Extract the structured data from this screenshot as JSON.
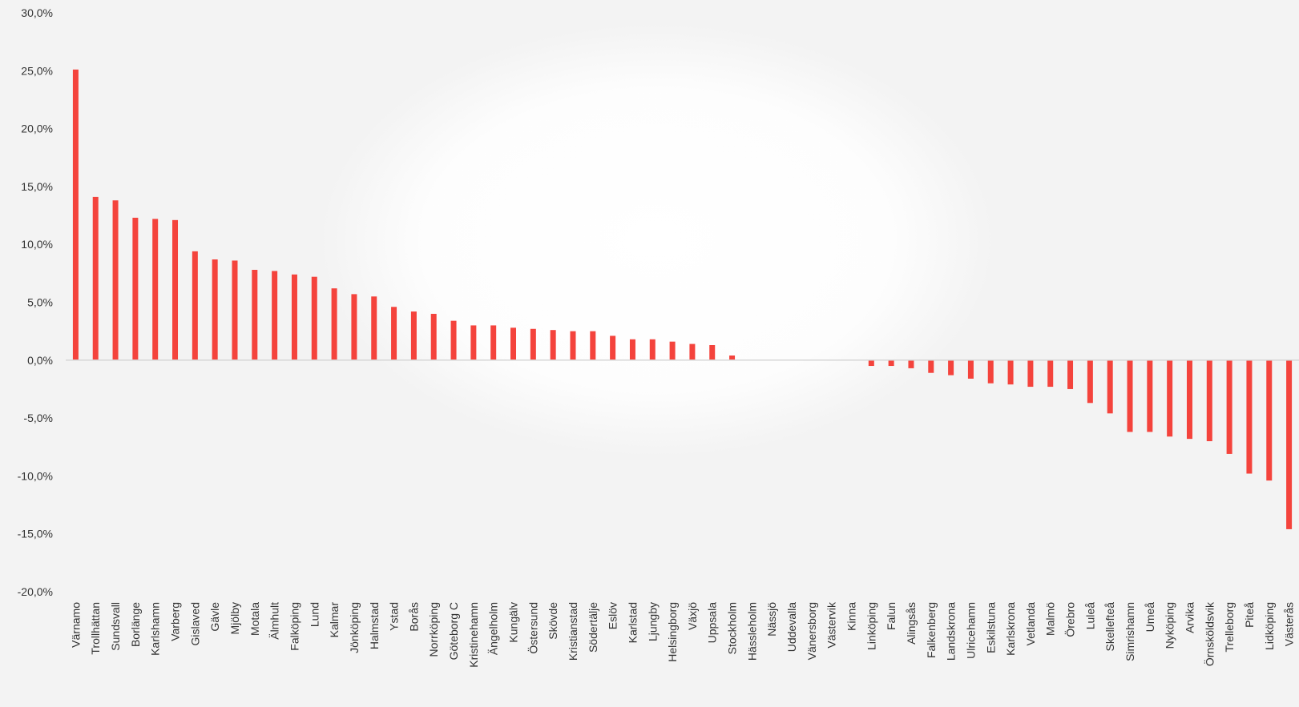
{
  "chart_data": {
    "type": "bar",
    "title": "",
    "xlabel": "",
    "ylabel": "",
    "ylim": [
      -20,
      30
    ],
    "yticks": [
      30,
      25,
      20,
      15,
      10,
      5,
      0,
      -5,
      -10,
      -15,
      -20
    ],
    "ytick_labels": [
      "30,0%",
      "25,0%",
      "20,0%",
      "15,0%",
      "10,0%",
      "5,0%",
      "0,0%",
      "-5,0%",
      "-10,0%",
      "-15,0%",
      "-20,0%"
    ],
    "bar_color": "#f4433c",
    "grid": false,
    "legend": "none",
    "categories": [
      "Värnamo",
      "Trollhättan",
      "Sundsvall",
      "Borlänge",
      "Karlshamn",
      "Varberg",
      "Gislaved",
      "Gävle",
      "Mjölby",
      "Motala",
      "Älmhult",
      "Falköping",
      "Lund",
      "Kalmar",
      "Jönköping",
      "Halmstad",
      "Ystad",
      "Borås",
      "Norrköping",
      "Göteborg C",
      "Kristinehamn",
      "Ängelholm",
      "Kungälv",
      "Östersund",
      "Skövde",
      "Kristianstad",
      "Södertälje",
      "Eslöv",
      "Karlstad",
      "Ljungby",
      "Helsingborg",
      "Växjö",
      "Uppsala",
      "Stockholm",
      "Hässleholm",
      "Nässjö",
      "Uddevalla",
      "Vänersborg",
      "Västervik",
      "Kinna",
      "Linköping",
      "Falun",
      "Alingsås",
      "Falkenberg",
      "Landskrona",
      "Ulricehamn",
      "Eskilstuna",
      "Karlskrona",
      "Vetlanda",
      "Malmö",
      "Örebro",
      "Luleå",
      "Skellefteå",
      "Simrishamn",
      "Umeå",
      "Nyköping",
      "Arvika",
      "Örnsköldsvik",
      "Trelleborg",
      "Piteå",
      "Lidköping",
      "Västerås"
    ],
    "values": [
      25.1,
      14.1,
      13.8,
      12.3,
      12.2,
      12.1,
      9.4,
      8.7,
      8.6,
      7.8,
      7.7,
      7.4,
      7.2,
      6.2,
      5.7,
      5.5,
      4.6,
      4.2,
      4.0,
      3.4,
      3.0,
      3.0,
      2.8,
      2.7,
      2.6,
      2.5,
      2.5,
      2.1,
      1.8,
      1.8,
      1.6,
      1.4,
      1.3,
      0.4,
      0.0,
      0.0,
      0.0,
      0.0,
      0.0,
      0.0,
      -0.5,
      -0.5,
      -0.7,
      -1.1,
      -1.3,
      -1.6,
      -2.0,
      -2.1,
      -2.3,
      -2.3,
      -2.5,
      -3.7,
      -4.6,
      -6.2,
      -6.2,
      -6.6,
      -6.8,
      -7.0,
      -8.1,
      -9.8,
      -10.4,
      -14.6
    ]
  }
}
